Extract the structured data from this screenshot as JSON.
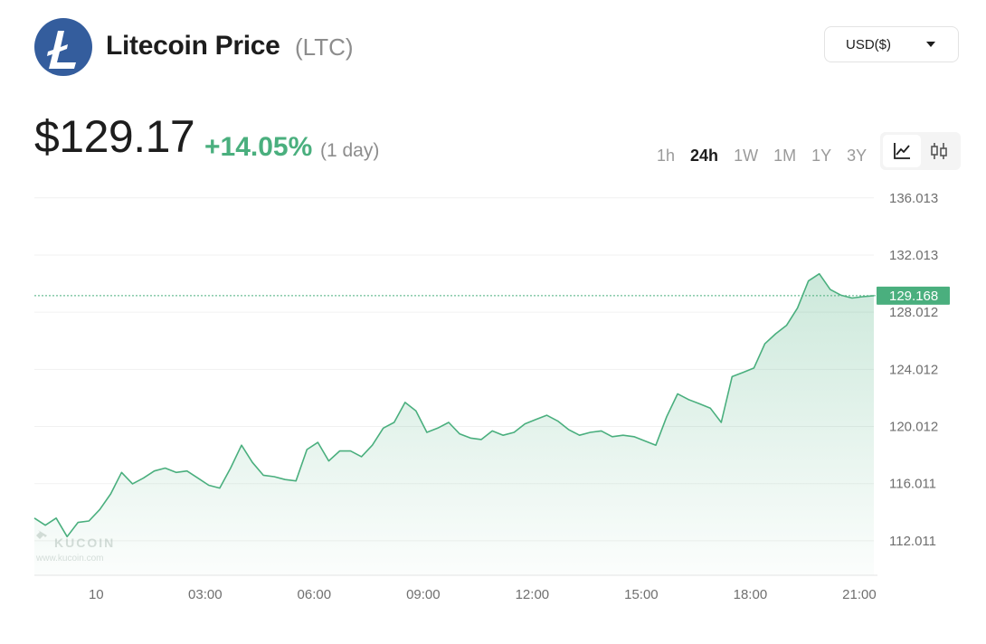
{
  "header": {
    "title": "Litecoin Price",
    "ticker": "(LTC)",
    "currency": "USD($)",
    "logo_icon": "litecoin-logo-icon"
  },
  "price": {
    "value": "$129.17",
    "change": "+14.05%",
    "period": "(1 day)"
  },
  "ranges": [
    {
      "label": "1h"
    },
    {
      "label": "24h",
      "active": true
    },
    {
      "label": "1W"
    },
    {
      "label": "1M"
    },
    {
      "label": "1Y"
    },
    {
      "label": "3Y"
    }
  ],
  "chart_modes": [
    "line-chart-icon",
    "candlestick-chart-icon"
  ],
  "colors": {
    "accent": "#4aaf7e",
    "logo": "#345d9d",
    "current_price_label": "#4aaf7e"
  },
  "watermark": {
    "brand": "KUCOIN",
    "url": "www.kucoin.com"
  },
  "chart_data": {
    "type": "area",
    "y_ticks": [
      "136.013",
      "132.013",
      "128.012",
      "124.012",
      "120.012",
      "116.011",
      "112.011"
    ],
    "x_ticks": [
      "10",
      "03:00",
      "06:00",
      "09:00",
      "12:00",
      "15:00",
      "18:00",
      "21:00"
    ],
    "ylim": [
      109.6,
      137.2
    ],
    "current_price": "129.168",
    "grid": true,
    "series": [
      {
        "x": [
          -1.7,
          -1.4,
          -1.1,
          -0.8,
          -0.5,
          -0.2,
          0.1,
          0.4,
          0.7,
          1.0,
          1.3,
          1.6,
          1.9,
          2.2,
          2.5,
          2.8,
          3.1,
          3.4,
          3.7,
          4.0,
          4.3,
          4.6,
          4.9,
          5.2,
          5.5,
          5.8,
          6.1,
          6.4,
          6.7,
          7.0,
          7.3,
          7.6,
          7.9,
          8.2,
          8.5,
          8.8,
          9.1,
          9.4,
          9.7,
          10.0,
          10.3,
          10.6,
          10.9,
          11.2,
          11.5,
          11.8,
          12.1,
          12.4,
          12.7,
          13.0,
          13.3,
          13.6,
          13.9,
          14.2,
          14.5,
          14.8,
          15.1,
          15.4,
          15.7,
          16.0,
          16.3,
          16.6,
          16.9,
          17.2,
          17.5,
          17.8,
          18.1,
          18.4,
          18.7,
          19.0,
          19.3,
          19.6,
          19.9,
          20.2,
          20.5,
          20.8,
          21.1,
          21.4
        ],
        "values": [
          113.6,
          113.1,
          113.6,
          112.3,
          113.3,
          113.4,
          114.2,
          115.3,
          116.8,
          116.0,
          116.4,
          116.9,
          117.1,
          116.8,
          116.9,
          116.4,
          115.9,
          115.7,
          117.1,
          118.7,
          117.5,
          116.6,
          116.5,
          116.3,
          116.2,
          118.4,
          118.9,
          117.6,
          118.3,
          118.3,
          117.9,
          118.7,
          119.9,
          120.3,
          121.7,
          121.1,
          119.6,
          119.9,
          120.3,
          119.5,
          119.2,
          119.1,
          119.7,
          119.4,
          119.6,
          120.2,
          120.5,
          120.8,
          120.4,
          119.8,
          119.4,
          119.6,
          119.7,
          119.3,
          119.4,
          119.3,
          119.0,
          118.7,
          120.7,
          122.3,
          121.9,
          121.6,
          121.3,
          120.3,
          123.5,
          123.8,
          124.1,
          125.8,
          126.5,
          127.1,
          128.3,
          130.2,
          130.7,
          129.6,
          129.2,
          129.0,
          129.1,
          129.17
        ]
      }
    ]
  }
}
